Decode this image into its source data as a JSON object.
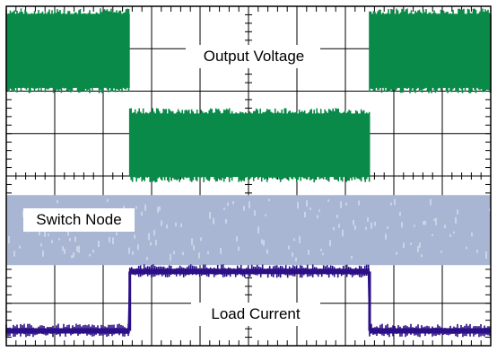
{
  "chart_data": {
    "type": "line",
    "title": "",
    "xlabel": "",
    "ylabel": "",
    "grid": true,
    "divisions": {
      "x": 10,
      "y": 8,
      "minor_per_division": 5
    },
    "x": [
      0,
      2.55,
      7.5,
      10
    ],
    "series": [
      {
        "name": "Output Voltage",
        "color": "#0a8a48",
        "envelope_div": [
          {
            "from": 0,
            "to": 2.55,
            "low": 5.95,
            "high": 7.95
          },
          {
            "from": 2.55,
            "to": 7.5,
            "low": 3.85,
            "high": 5.6
          },
          {
            "from": 7.5,
            "to": 10,
            "low": 5.95,
            "high": 7.95
          }
        ]
      },
      {
        "name": "Switch Node",
        "color": "#a8b6d4",
        "envelope_div": [
          {
            "from": 0,
            "to": 10,
            "low": 1.9,
            "high": 3.55
          }
        ]
      },
      {
        "name": "Load Current",
        "color": "#2b0f86",
        "level_div": [
          {
            "from": 0,
            "to": 2.55,
            "level": 0.35
          },
          {
            "from": 2.55,
            "to": 7.5,
            "level": 1.75
          },
          {
            "from": 7.5,
            "to": 10,
            "level": 0.35
          }
        ]
      }
    ],
    "labels": [
      {
        "text": "Output Voltage",
        "series": "Output Voltage"
      },
      {
        "text": "Switch Node",
        "series": "Switch Node"
      },
      {
        "text": "Load Current",
        "series": "Load Current"
      }
    ]
  }
}
